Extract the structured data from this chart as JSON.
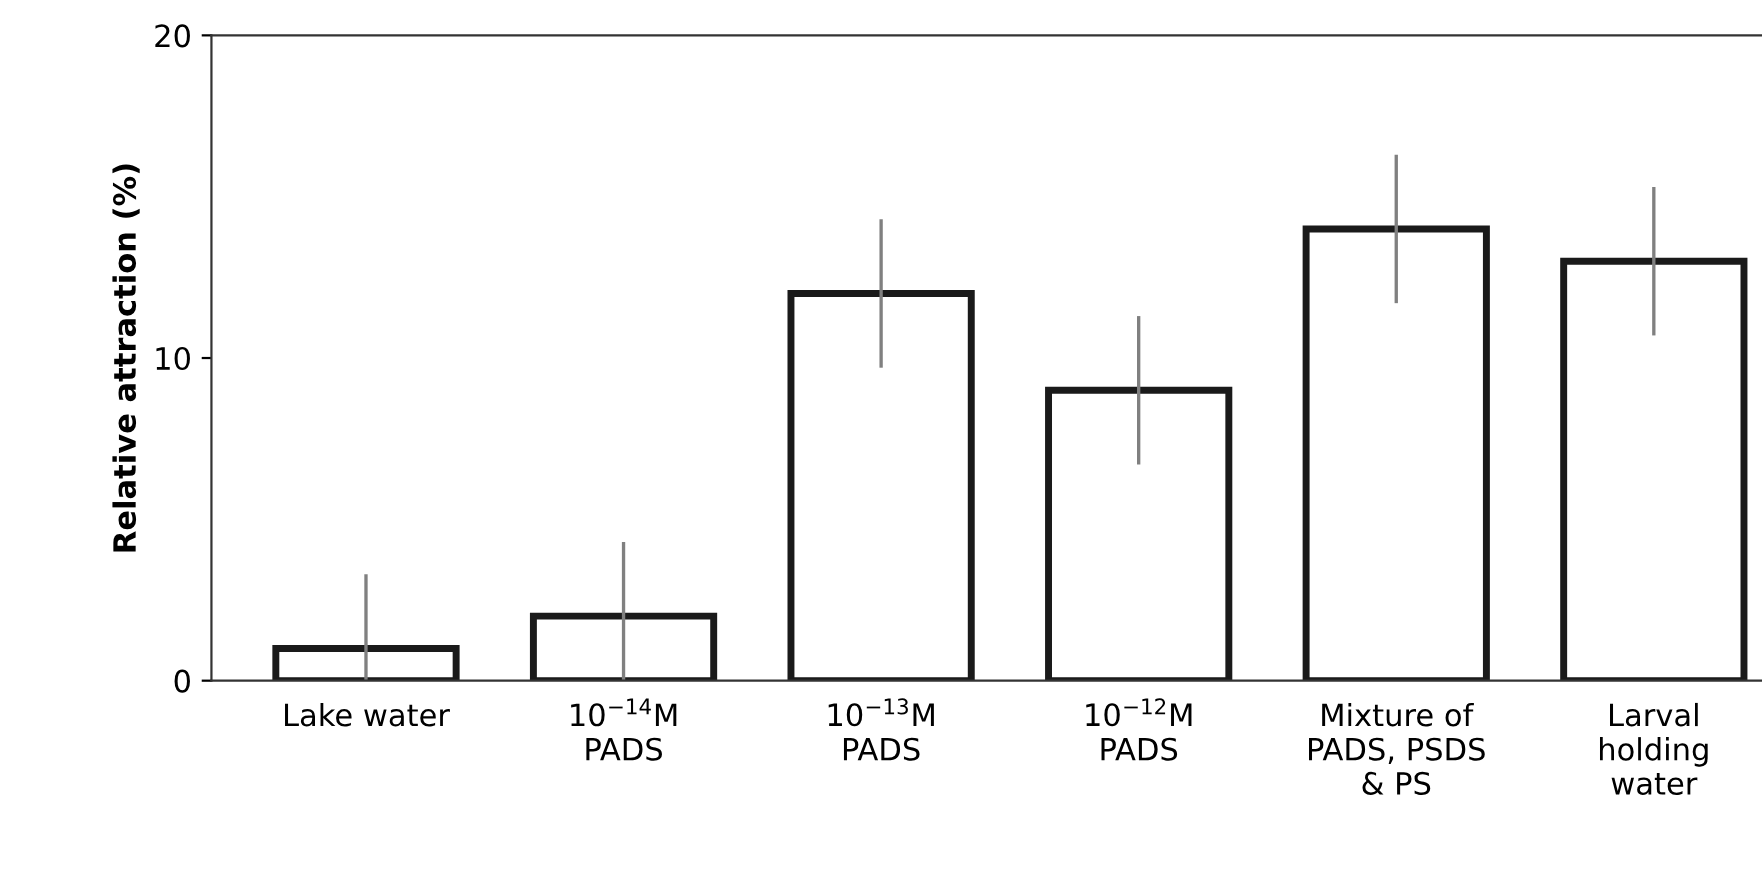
{
  "chart_data": {
    "type": "bar",
    "ylabel": "Relative attraction (%)",
    "categories": [
      "Lake water",
      "10$^{−14}$M\nPADS",
      "10$^{−13}$M\nPADS",
      "10$^{−12}$M\nPADS",
      "Mixture of\nPADS, PSDS\n& PS",
      "Larval\nholding\nwater"
    ],
    "values": [
      1,
      2,
      12,
      9,
      14,
      13
    ],
    "errors": [
      [
        0,
        3.3
      ],
      [
        0,
        4.3
      ],
      2.3,
      2.3,
      2.3,
      2.3
    ],
    "color": "#ffffff",
    "ylim": [
      0,
      20
    ],
    "yticks": [
      0,
      10,
      20
    ],
    "grid": false,
    "legend": false
  }
}
